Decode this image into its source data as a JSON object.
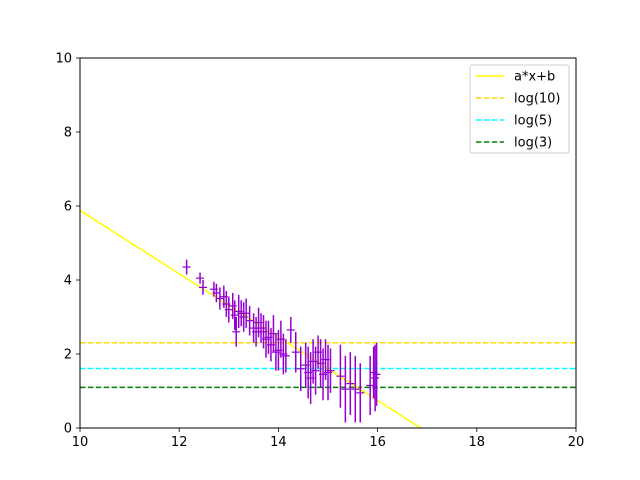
{
  "chart_data": {
    "type": "scatter",
    "title": "",
    "xlabel": "",
    "ylabel": "",
    "xlim": [
      10,
      20
    ],
    "ylim": [
      0,
      10
    ],
    "xticks": [
      10,
      12,
      14,
      16,
      18,
      20
    ],
    "yticks": [
      0,
      2,
      4,
      6,
      8,
      10
    ],
    "grid": false,
    "legend_position": "top-right",
    "legend": [
      "a*x+b",
      "log(10)",
      "log(5)",
      "log(3)"
    ],
    "fit_line": {
      "name": "a*x+b",
      "color": "#ffff00",
      "x": [
        10,
        16.87
      ],
      "y": [
        5.88,
        0
      ]
    },
    "hlines": [
      {
        "name": "log(10)",
        "y": 2.303,
        "color": "#ffd700",
        "style": "dashed"
      },
      {
        "name": "log(5)",
        "y": 1.609,
        "color": "#00ffff",
        "style": "dashed"
      },
      {
        "name": "log(3)",
        "y": 1.099,
        "color": "#008000",
        "style": "dashed"
      }
    ],
    "points": {
      "color": "#9400d3",
      "marker": "+",
      "x": [
        12.15,
        12.42,
        12.48,
        12.7,
        12.75,
        12.82,
        12.9,
        12.95,
        13.0,
        13.08,
        13.12,
        13.15,
        13.2,
        13.25,
        13.3,
        13.35,
        13.42,
        13.5,
        13.55,
        13.6,
        13.65,
        13.7,
        13.75,
        13.8,
        13.85,
        13.9,
        13.95,
        14.0,
        14.05,
        14.1,
        14.15,
        14.25,
        14.35,
        14.45,
        14.55,
        14.6,
        14.65,
        14.7,
        14.75,
        14.8,
        14.85,
        14.9,
        14.95,
        15.0,
        15.05,
        15.25,
        15.35,
        15.45,
        15.55,
        15.65,
        15.85,
        15.92,
        15.95,
        15.98
      ],
      "y": [
        4.35,
        4.05,
        3.8,
        3.75,
        3.65,
        3.5,
        3.55,
        3.35,
        3.2,
        3.3,
        3.05,
        2.6,
        3.15,
        3.1,
        3.0,
        3.1,
        2.9,
        2.7,
        2.6,
        2.85,
        2.7,
        2.6,
        2.4,
        2.45,
        2.25,
        2.55,
        2.05,
        2.1,
        2.4,
        2.0,
        1.95,
        2.65,
        2.05,
        1.6,
        1.7,
        1.5,
        1.35,
        1.8,
        1.55,
        2.05,
        1.75,
        1.45,
        1.85,
        1.5,
        1.55,
        1.4,
        1.05,
        1.2,
        1.05,
        0.95,
        1.15,
        1.5,
        1.35,
        1.45
      ],
      "yerr": [
        0.2,
        0.15,
        0.2,
        0.2,
        0.25,
        0.3,
        0.3,
        0.35,
        0.35,
        0.35,
        0.4,
        0.4,
        0.45,
        0.35,
        0.4,
        0.4,
        0.4,
        0.4,
        0.4,
        0.4,
        0.4,
        0.45,
        0.5,
        0.45,
        0.45,
        0.5,
        0.5,
        0.55,
        0.5,
        0.55,
        0.45,
        0.35,
        0.55,
        0.6,
        0.6,
        0.7,
        0.7,
        0.6,
        0.65,
        0.45,
        0.65,
        0.7,
        0.55,
        0.75,
        0.6,
        0.85,
        0.9,
        0.85,
        0.9,
        0.8,
        0.8,
        0.7,
        0.9,
        0.85
      ]
    }
  }
}
